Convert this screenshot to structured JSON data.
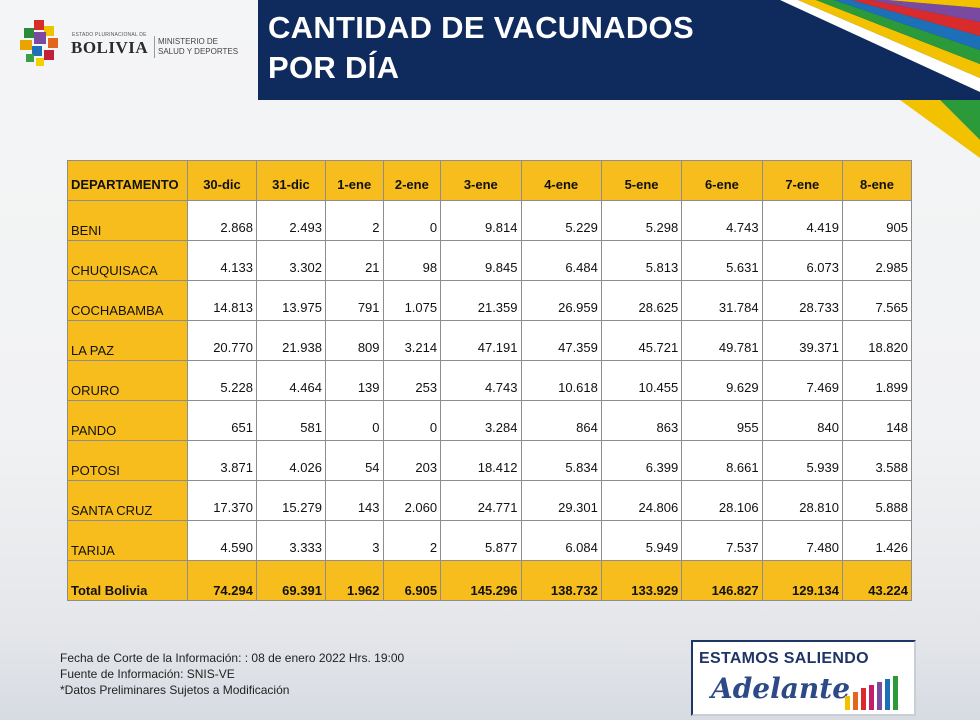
{
  "header": {
    "logo_small": "ESTADO PLURINACIONAL DE",
    "logo_country": "BOLIVIA",
    "logo_ministry_line1": "MINISTERIO DE",
    "logo_ministry_line2": "SALUD Y DEPORTES",
    "title_line1": "CANTIDAD DE VACUNADOS",
    "title_line2": "POR DÍA"
  },
  "table": {
    "headers": [
      "DEPARTAMENTO",
      "30-dic",
      "31-dic",
      "1-ene",
      "2-ene",
      "3-ene",
      "4-ene",
      "5-ene",
      "6-ene",
      "7-ene",
      "8-ene"
    ],
    "rows": [
      [
        "BENI",
        "2.868",
        "2.493",
        "2",
        "0",
        "9.814",
        "5.229",
        "5.298",
        "4.743",
        "4.419",
        "905"
      ],
      [
        "CHUQUISACA",
        "4.133",
        "3.302",
        "21",
        "98",
        "9.845",
        "6.484",
        "5.813",
        "5.631",
        "6.073",
        "2.985"
      ],
      [
        "COCHABAMBA",
        "14.813",
        "13.975",
        "791",
        "1.075",
        "21.359",
        "26.959",
        "28.625",
        "31.784",
        "28.733",
        "7.565"
      ],
      [
        "LA PAZ",
        "20.770",
        "21.938",
        "809",
        "3.214",
        "47.191",
        "47.359",
        "45.721",
        "49.781",
        "39.371",
        "18.820"
      ],
      [
        "ORURO",
        "5.228",
        "4.464",
        "139",
        "253",
        "4.743",
        "10.618",
        "10.455",
        "9.629",
        "7.469",
        "1.899"
      ],
      [
        "PANDO",
        "651",
        "581",
        "0",
        "0",
        "3.284",
        "864",
        "863",
        "955",
        "840",
        "148"
      ],
      [
        "POTOSI",
        "3.871",
        "4.026",
        "54",
        "203",
        "18.412",
        "5.834",
        "6.399",
        "8.661",
        "5.939",
        "3.588"
      ],
      [
        "SANTA CRUZ",
        "17.370",
        "15.279",
        "143",
        "2.060",
        "24.771",
        "29.301",
        "24.806",
        "28.106",
        "28.810",
        "5.888"
      ],
      [
        "TARIJA",
        "4.590",
        "3.333",
        "3",
        "2",
        "5.877",
        "6.084",
        "5.949",
        "7.537",
        "7.480",
        "1.426"
      ]
    ],
    "total": [
      "Total Bolivia",
      "74.294",
      "69.391",
      "1.962",
      "6.905",
      "145.296",
      "138.732",
      "133.929",
      "146.827",
      "129.134",
      "43.224"
    ]
  },
  "footer": {
    "note1": "Fecha de Corte de la Información: : 08 de enero 2022 Hrs. 19:00",
    "note2": "Fuente de Información: SNIS-VE",
    "note3": "*Datos Preliminares Sujetos a Modificación",
    "badge_top": "ESTAMOS SALIENDO",
    "badge_script": "Adelante"
  },
  "colors": {
    "title_bg": "#0f2a5c",
    "table_accent": "#f7bd1d",
    "badge_blue": "#1f3566"
  }
}
